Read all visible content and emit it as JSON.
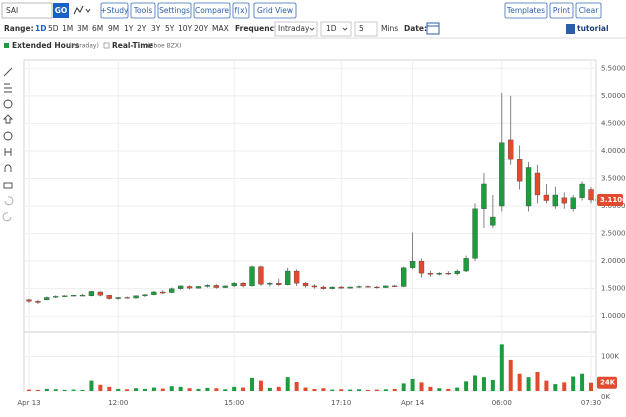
{
  "toolbar": {
    "symbol": "SAI",
    "go": "GO",
    "buttons": [
      "+Study",
      "Tools",
      "Settings",
      "Compare",
      "f(x)",
      "Grid View"
    ],
    "right_buttons": [
      "Templates",
      "Print",
      "Clear"
    ]
  },
  "range_bar": {
    "range_label": "Range:",
    "ranges": [
      "1D",
      "5D",
      "1M",
      "3M",
      "6M",
      "9M",
      "1Y",
      "2Y",
      "3Y",
      "5Y",
      "10Y",
      "20Y",
      "MAX"
    ],
    "frequency_label": "Frequency:",
    "frequency": "Intraday",
    "period": "1D",
    "interval": "5",
    "interval_unit": "Mins",
    "date_label": "Date:",
    "tutorial": "tutorial"
  },
  "legend": {
    "extended": "Extended Hours",
    "extended_note": "(Intraday)",
    "realtime": "Real-Time",
    "realtime_note": "(Cboe BZX)"
  },
  "chart_data": {
    "type": "candlestick",
    "categories": [
      "Apr 13",
      null,
      null,
      null,
      null,
      null,
      null,
      null,
      null,
      null,
      "12:00",
      null,
      null,
      null,
      null,
      null,
      null,
      null,
      null,
      null,
      null,
      null,
      null,
      "15:00",
      null,
      null,
      null,
      null,
      null,
      null,
      null,
      null,
      null,
      null,
      null,
      "17:10",
      null,
      null,
      null,
      null,
      null,
      null,
      null,
      "Apr 14",
      null,
      null,
      null,
      null,
      null,
      null,
      null,
      null,
      null,
      "06:00",
      null,
      null,
      null,
      null,
      null,
      null,
      null,
      null,
      null,
      "07:30"
    ],
    "open": [
      1.3,
      1.27,
      1.3,
      1.35,
      1.36,
      1.37,
      1.38,
      1.37,
      1.44,
      1.38,
      1.32,
      1.34,
      1.33,
      1.37,
      1.39,
      1.44,
      1.43,
      1.5,
      1.54,
      1.51,
      1.54,
      1.56,
      1.52,
      1.55,
      1.6,
      1.55,
      1.9,
      1.58,
      1.6,
      1.57,
      1.82,
      1.6,
      1.55,
      1.53,
      1.5,
      1.53,
      1.51,
      1.53,
      1.54,
      1.53,
      1.52,
      1.55,
      1.54,
      1.88,
      2.0,
      1.78,
      1.76,
      1.78,
      1.77,
      1.82,
      2.05,
      2.95,
      2.65,
      3.0,
      4.2,
      3.85,
      3.0,
      3.6,
      3.2,
      3.0,
      3.15,
      2.95,
      3.15,
      3.3
    ],
    "high": [
      1.32,
      1.3,
      1.36,
      1.38,
      1.38,
      1.39,
      1.4,
      1.46,
      1.45,
      1.39,
      1.35,
      1.36,
      1.38,
      1.4,
      1.46,
      1.47,
      1.52,
      1.56,
      1.56,
      1.55,
      1.58,
      1.58,
      1.56,
      1.62,
      1.62,
      1.92,
      1.92,
      1.62,
      1.68,
      1.88,
      1.85,
      1.62,
      1.58,
      1.55,
      1.54,
      1.55,
      1.54,
      1.56,
      1.56,
      1.55,
      1.56,
      1.57,
      1.9,
      2.52,
      2.05,
      1.82,
      1.8,
      1.82,
      1.85,
      2.1,
      3.05,
      3.6,
      3.2,
      5.05,
      5.0,
      4.1,
      3.8,
      3.75,
      3.4,
      3.35,
      3.25,
      3.2,
      3.45,
      3.35
    ],
    "low": [
      1.24,
      1.22,
      1.29,
      1.33,
      1.35,
      1.36,
      1.37,
      1.36,
      1.36,
      1.3,
      1.3,
      1.32,
      1.32,
      1.35,
      1.38,
      1.4,
      1.42,
      1.48,
      1.49,
      1.5,
      1.52,
      1.5,
      1.51,
      1.53,
      1.52,
      1.54,
      1.55,
      1.54,
      1.55,
      1.56,
      1.55,
      1.52,
      1.5,
      1.48,
      1.49,
      1.5,
      1.5,
      1.51,
      1.52,
      1.5,
      1.51,
      1.53,
      1.53,
      1.85,
      1.7,
      1.72,
      1.74,
      1.75,
      1.74,
      1.8,
      2.0,
      2.6,
      2.6,
      2.9,
      3.75,
      3.3,
      2.9,
      3.05,
      3.05,
      2.95,
      2.95,
      2.9,
      3.1,
      3.05
    ],
    "close": [
      1.27,
      1.25,
      1.34,
      1.36,
      1.37,
      1.38,
      1.38,
      1.45,
      1.38,
      1.32,
      1.34,
      1.33,
      1.37,
      1.39,
      1.44,
      1.42,
      1.5,
      1.55,
      1.51,
      1.54,
      1.56,
      1.52,
      1.55,
      1.6,
      1.55,
      1.9,
      1.58,
      1.6,
      1.57,
      1.82,
      1.6,
      1.55,
      1.53,
      1.5,
      1.53,
      1.51,
      1.53,
      1.54,
      1.53,
      1.52,
      1.55,
      1.54,
      1.88,
      2.0,
      1.78,
      1.76,
      1.78,
      1.77,
      1.82,
      2.05,
      2.95,
      3.4,
      2.8,
      4.15,
      3.85,
      3.45,
      3.7,
      3.2,
      3.1,
      3.2,
      3.05,
      3.15,
      3.4,
      3.11
    ],
    "volume": [
      4000,
      3000,
      6000,
      5000,
      3000,
      4000,
      3000,
      30000,
      18000,
      12000,
      6000,
      5000,
      8000,
      6000,
      10000,
      7000,
      14000,
      12000,
      8000,
      6000,
      9000,
      8000,
      5000,
      12000,
      10000,
      38000,
      30000,
      9000,
      12000,
      40000,
      26000,
      10000,
      6000,
      8000,
      4000,
      5000,
      4000,
      5000,
      3000,
      4000,
      5000,
      6000,
      22000,
      35000,
      25000,
      12000,
      8000,
      6000,
      10000,
      28000,
      45000,
      40000,
      32000,
      135000,
      90000,
      50000,
      40000,
      55000,
      30000,
      20000,
      25000,
      42000,
      50000,
      24000
    ],
    "last_close_label": "3.1100",
    "last_volume_label": "24K",
    "ylim": [
      0.75,
      5.65
    ],
    "yticks": [
      {
        "value": 1,
        "label": "1.0000"
      },
      {
        "value": 1.5,
        "label": "1.5000"
      },
      {
        "value": 2,
        "label": "2.0000"
      },
      {
        "value": 2.5,
        "label": "2.5000"
      },
      {
        "value": 3,
        "label": "3.0000"
      },
      {
        "value": 3.5,
        "label": "3.5000"
      },
      {
        "value": 4,
        "label": "4.0000"
      },
      {
        "value": 4.5,
        "label": "4.5000"
      },
      {
        "value": 5,
        "label": "5.0000"
      },
      {
        "value": 5.5,
        "label": "5.5000"
      }
    ],
    "volume_ylim": [
      0,
      165000
    ],
    "volume_yticks": [
      {
        "value": 0,
        "label": "0K"
      },
      {
        "value": 100000,
        "label": "100K"
      }
    ],
    "up_color": "#1e9b3c",
    "down_color": "#e2492f",
    "grid": true
  }
}
